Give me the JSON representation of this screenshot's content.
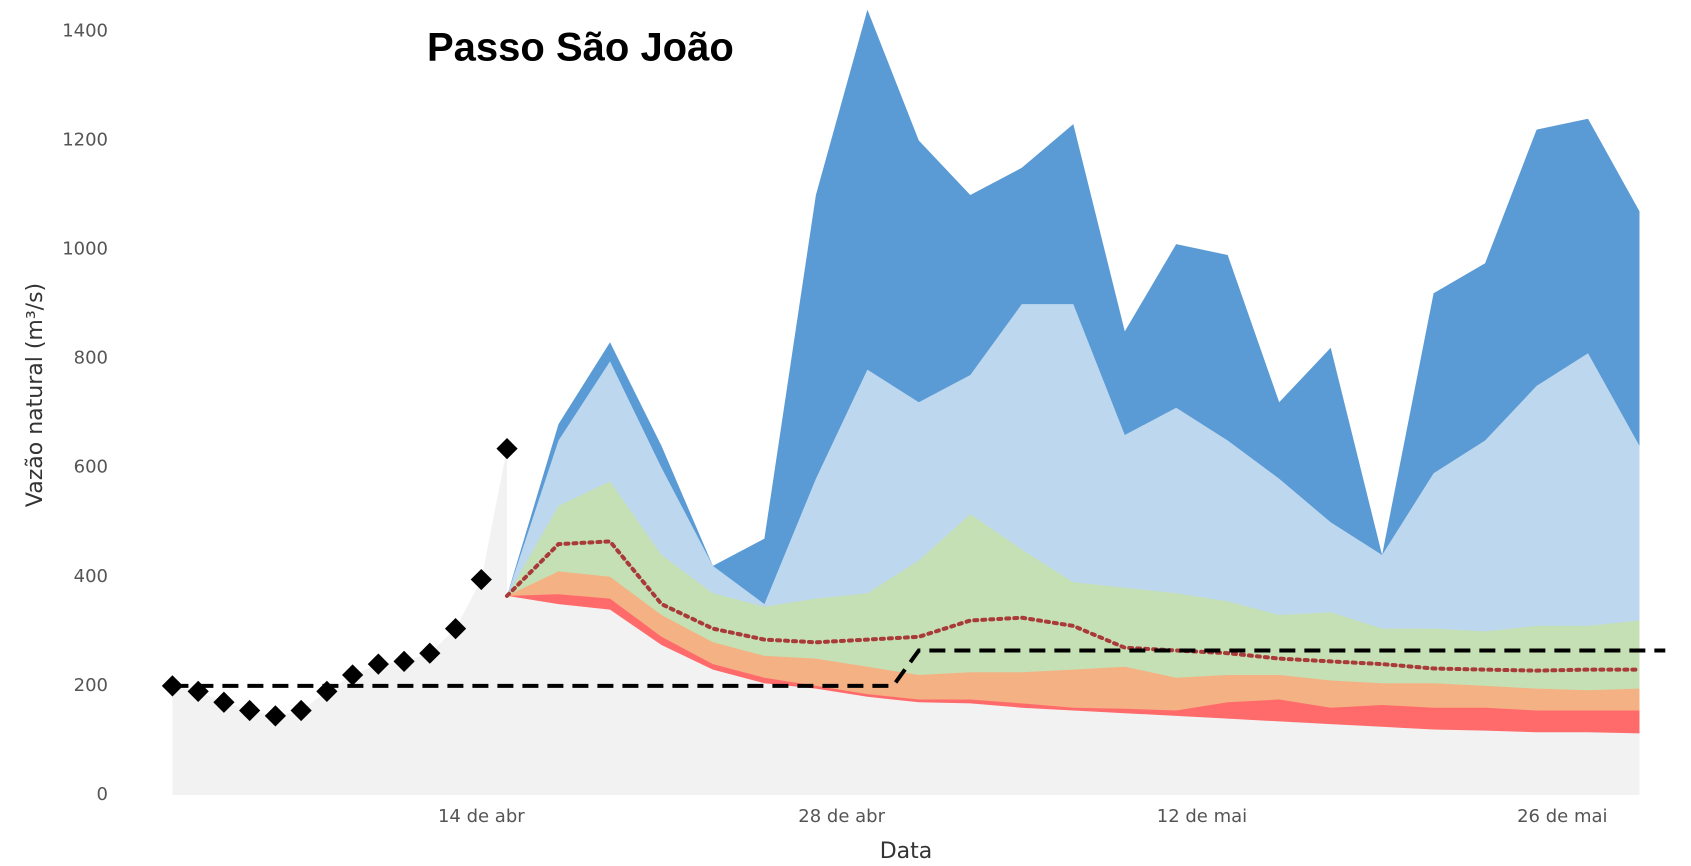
{
  "chart_data": {
    "type": "area",
    "title": "Passo São João",
    "x_label": "Data",
    "y_label": "Vazão natural (m³/s)",
    "xlim": [
      "04-01",
      "05-31"
    ],
    "xticks": [
      {
        "value": "04-14",
        "label": "14 de abr"
      },
      {
        "value": "04-28",
        "label": "28 de abr"
      },
      {
        "value": "05-12",
        "label": "12 de mai"
      },
      {
        "value": "05-26",
        "label": "26 de mai"
      }
    ],
    "ylim": [
      0,
      1400
    ],
    "yticks": [
      0,
      200,
      400,
      600,
      800,
      1000,
      1200,
      1400
    ],
    "series": [
      {
        "kind": "area",
        "color": "#f2f2f2",
        "x": [
          "04-02",
          "04-03",
          "04-04",
          "04-05",
          "04-06",
          "04-07",
          "04-08",
          "04-09",
          "04-10",
          "04-11",
          "04-12",
          "04-13",
          "04-14",
          "04-15"
        ],
        "values": [
          200,
          190,
          170,
          155,
          145,
          155,
          190,
          220,
          240,
          245,
          260,
          305,
          395,
          635
        ]
      },
      {
        "kind": "area",
        "color": "#5b9bd5",
        "x": [
          "04-15",
          "04-17",
          "04-19",
          "04-21",
          "04-23",
          "04-25",
          "04-27",
          "04-29",
          "05-01",
          "05-03",
          "05-05",
          "05-07",
          "05-09",
          "05-11",
          "05-13",
          "05-15",
          "05-17",
          "05-19",
          "05-21",
          "05-23",
          "05-25",
          "05-27",
          "05-29"
        ],
        "values": [
          365,
          680,
          830,
          640,
          420,
          470,
          1100,
          1440,
          1200,
          1100,
          1150,
          1230,
          850,
          1010,
          990,
          720,
          820,
          440,
          920,
          975,
          1220,
          1240,
          1070
        ]
      },
      {
        "kind": "area",
        "color": "#bdd7ee",
        "x": [
          "04-15",
          "04-17",
          "04-19",
          "04-21",
          "04-23",
          "04-25",
          "04-27",
          "04-29",
          "05-01",
          "05-03",
          "05-05",
          "05-07",
          "05-09",
          "05-11",
          "05-13",
          "05-15",
          "05-17",
          "05-19",
          "05-21",
          "05-23",
          "05-25",
          "05-27",
          "05-29"
        ],
        "values": [
          365,
          650,
          795,
          600,
          420,
          350,
          580,
          780,
          720,
          770,
          900,
          900,
          660,
          710,
          650,
          580,
          500,
          440,
          590,
          650,
          750,
          810,
          640
        ]
      },
      {
        "kind": "area",
        "color": "#c5e0b4",
        "x": [
          "04-15",
          "04-17",
          "04-19",
          "04-21",
          "04-23",
          "04-25",
          "04-27",
          "04-29",
          "05-01",
          "05-03",
          "05-05",
          "05-07",
          "05-09",
          "05-11",
          "05-13",
          "05-15",
          "05-17",
          "05-19",
          "05-21",
          "05-23",
          "05-25",
          "05-27",
          "05-29"
        ],
        "values": [
          365,
          530,
          575,
          440,
          370,
          345,
          360,
          370,
          430,
          515,
          450,
          390,
          380,
          370,
          355,
          330,
          335,
          305,
          305,
          300,
          310,
          310,
          320
        ]
      },
      {
        "kind": "area",
        "color": "#f4b183",
        "x": [
          "04-15",
          "04-17",
          "04-19",
          "04-21",
          "04-23",
          "04-25",
          "04-27",
          "04-29",
          "05-01",
          "05-03",
          "05-05",
          "05-07",
          "05-09",
          "05-11",
          "05-13",
          "05-15",
          "05-17",
          "05-19",
          "05-21",
          "05-23",
          "05-25",
          "05-27",
          "05-29"
        ],
        "values": [
          365,
          410,
          400,
          330,
          280,
          255,
          250,
          235,
          220,
          225,
          225,
          230,
          235,
          215,
          220,
          220,
          210,
          205,
          205,
          200,
          195,
          192,
          195
        ]
      },
      {
        "kind": "area",
        "color": "#ff6b6b",
        "x": [
          "04-15",
          "04-17",
          "04-19",
          "04-21",
          "04-23",
          "04-25",
          "04-27",
          "04-29",
          "05-01",
          "05-03",
          "05-05",
          "05-07",
          "05-09",
          "05-11",
          "05-13",
          "05-15",
          "05-17",
          "05-19",
          "05-21",
          "05-23",
          "05-25",
          "05-27",
          "05-29"
        ],
        "values": [
          365,
          368,
          360,
          290,
          240,
          215,
          200,
          185,
          175,
          175,
          168,
          160,
          158,
          155,
          170,
          175,
          160,
          165,
          160,
          160,
          155,
          155,
          155
        ]
      },
      {
        "kind": "area",
        "color": "#f2f2f2",
        "x": [
          "04-15",
          "04-17",
          "04-19",
          "04-21",
          "04-23",
          "04-25",
          "04-27",
          "04-29",
          "05-01",
          "05-03",
          "05-05",
          "05-07",
          "05-09",
          "05-11",
          "05-13",
          "05-15",
          "05-17",
          "05-19",
          "05-21",
          "05-23",
          "05-25",
          "05-27",
          "05-29"
        ],
        "values": [
          365,
          350,
          340,
          275,
          230,
          205,
          195,
          180,
          170,
          168,
          160,
          155,
          150,
          145,
          140,
          135,
          130,
          125,
          120,
          118,
          115,
          115,
          113
        ]
      },
      {
        "kind": "dotted-line",
        "color": "#a93a3a",
        "x": [
          "04-15",
          "04-17",
          "04-19",
          "04-21",
          "04-23",
          "04-25",
          "04-27",
          "04-29",
          "05-01",
          "05-03",
          "05-05",
          "05-07",
          "05-09",
          "05-11",
          "05-13",
          "05-15",
          "05-17",
          "05-19",
          "05-21",
          "05-23",
          "05-25",
          "05-27",
          "05-29"
        ],
        "values": [
          365,
          460,
          465,
          350,
          305,
          285,
          280,
          285,
          290,
          320,
          325,
          310,
          270,
          265,
          260,
          250,
          245,
          240,
          232,
          230,
          228,
          230,
          230
        ]
      },
      {
        "kind": "dashed-line",
        "color": "#000000",
        "x": [
          "04-02",
          "04-30",
          "05-01",
          "05-30"
        ],
        "values": [
          200,
          200,
          265,
          265
        ]
      },
      {
        "kind": "markers",
        "color": "#000000",
        "x": [
          "04-02",
          "04-03",
          "04-04",
          "04-05",
          "04-06",
          "04-07",
          "04-08",
          "04-09",
          "04-10",
          "04-11",
          "04-12",
          "04-13",
          "04-14",
          "04-15"
        ],
        "values": [
          200,
          190,
          170,
          155,
          145,
          155,
          190,
          220,
          240,
          245,
          260,
          305,
          395,
          635
        ]
      }
    ]
  }
}
